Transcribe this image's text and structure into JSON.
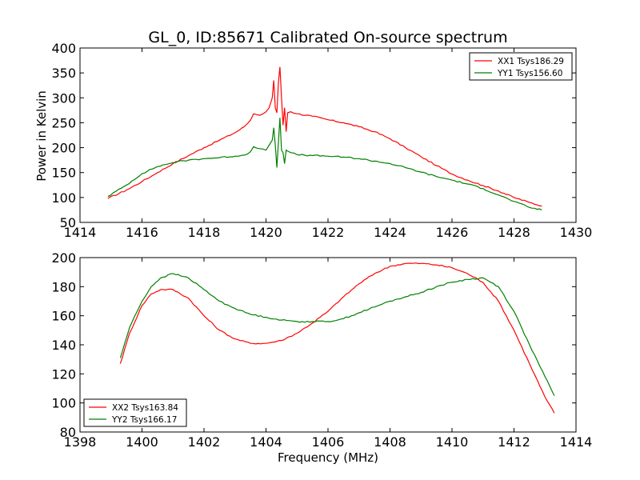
{
  "chart_data": [
    {
      "type": "line",
      "title": "GL_0, ID:85671 Calibrated On-source spectrum",
      "xlabel": "",
      "ylabel": "Power in Kelvin",
      "xlim": [
        1414,
        1430
      ],
      "ylim": [
        50,
        400
      ],
      "xticks": [
        1414,
        1416,
        1418,
        1420,
        1422,
        1424,
        1426,
        1428,
        1430
      ],
      "yticks": [
        50,
        100,
        150,
        200,
        250,
        300,
        350,
        400
      ],
      "legend_position": "top-right",
      "series": [
        {
          "name": "XX1 Tsys186.29",
          "color": "#ff0000",
          "x": [
            1414.9,
            1415.5,
            1416.0,
            1416.5,
            1417.0,
            1417.5,
            1418.0,
            1418.5,
            1419.0,
            1419.3,
            1419.5,
            1419.6,
            1419.8,
            1420.0,
            1420.1,
            1420.2,
            1420.25,
            1420.3,
            1420.35,
            1420.4,
            1420.45,
            1420.5,
            1420.55,
            1420.6,
            1420.65,
            1420.7,
            1420.8,
            1421.0,
            1421.5,
            1422.0,
            1422.5,
            1423.0,
            1423.5,
            1424.0,
            1424.5,
            1425.0,
            1425.5,
            1426.0,
            1426.5,
            1427.0,
            1427.5,
            1428.0,
            1428.5,
            1428.9
          ],
          "y": [
            98,
            115,
            132,
            150,
            168,
            184,
            200,
            215,
            230,
            242,
            255,
            268,
            265,
            272,
            280,
            300,
            335,
            280,
            270,
            330,
            362,
            300,
            245,
            280,
            232,
            270,
            272,
            268,
            263,
            256,
            250,
            242,
            232,
            218,
            200,
            182,
            164,
            147,
            135,
            124,
            113,
            100,
            90,
            83
          ]
        },
        {
          "name": "YY1 Tsys156.60",
          "color": "#008000",
          "x": [
            1414.9,
            1415.5,
            1416.0,
            1416.5,
            1417.0,
            1417.5,
            1418.0,
            1418.5,
            1419.0,
            1419.3,
            1419.5,
            1419.6,
            1419.8,
            1420.0,
            1420.1,
            1420.2,
            1420.25,
            1420.3,
            1420.35,
            1420.4,
            1420.45,
            1420.5,
            1420.55,
            1420.6,
            1420.65,
            1420.7,
            1420.8,
            1421.0,
            1421.5,
            1422.0,
            1422.5,
            1423.0,
            1423.5,
            1424.0,
            1424.5,
            1425.0,
            1425.5,
            1426.0,
            1426.5,
            1427.0,
            1427.5,
            1428.0,
            1428.5,
            1428.9
          ],
          "y": [
            102,
            125,
            148,
            162,
            170,
            175,
            178,
            180,
            183,
            185,
            192,
            202,
            198,
            195,
            205,
            215,
            240,
            205,
            160,
            210,
            260,
            195,
            190,
            168,
            195,
            193,
            190,
            186,
            184,
            183,
            181,
            178,
            173,
            168,
            160,
            151,
            142,
            135,
            127,
            118,
            105,
            92,
            80,
            75
          ]
        }
      ]
    },
    {
      "type": "line",
      "title": "",
      "xlabel": "Frequency (MHz)",
      "ylabel": "",
      "xlim": [
        1398,
        1414
      ],
      "ylim": [
        80,
        200
      ],
      "xticks": [
        1398,
        1400,
        1402,
        1404,
        1406,
        1408,
        1410,
        1412,
        1414
      ],
      "yticks": [
        80,
        100,
        120,
        140,
        160,
        180,
        200
      ],
      "legend_position": "bottom-left",
      "series": [
        {
          "name": "XX2 Tsys163.84",
          "color": "#ff0000",
          "x": [
            1399.3,
            1399.6,
            1400.0,
            1400.3,
            1400.6,
            1401.0,
            1401.5,
            1402.0,
            1402.5,
            1403.0,
            1403.5,
            1404.0,
            1404.5,
            1405.0,
            1405.5,
            1406.0,
            1406.5,
            1407.0,
            1407.5,
            1408.0,
            1408.5,
            1409.0,
            1409.5,
            1410.0,
            1410.5,
            1411.0,
            1411.5,
            1412.0,
            1412.5,
            1413.0,
            1413.3
          ],
          "y": [
            127,
            148,
            167,
            175,
            178,
            178,
            172,
            160,
            150,
            144,
            141,
            141,
            143,
            148,
            155,
            163,
            173,
            182,
            189,
            194,
            196,
            196,
            195,
            193,
            189,
            183,
            170,
            150,
            127,
            104,
            93
          ]
        },
        {
          "name": "YY2 Tsys166.17",
          "color": "#008000",
          "x": [
            1399.3,
            1399.6,
            1400.0,
            1400.3,
            1400.6,
            1401.0,
            1401.5,
            1402.0,
            1402.5,
            1403.0,
            1403.5,
            1404.0,
            1404.5,
            1405.0,
            1405.5,
            1406.0,
            1406.5,
            1407.0,
            1407.5,
            1408.0,
            1408.5,
            1409.0,
            1409.5,
            1410.0,
            1410.5,
            1411.0,
            1411.5,
            1412.0,
            1412.5,
            1413.0,
            1413.3
          ],
          "y": [
            131,
            152,
            170,
            180,
            186,
            189,
            186,
            178,
            170,
            165,
            161,
            159,
            157,
            156,
            156,
            156,
            158,
            162,
            166,
            170,
            173,
            176,
            180,
            183,
            185,
            186,
            180,
            163,
            140,
            118,
            105
          ]
        }
      ]
    }
  ]
}
